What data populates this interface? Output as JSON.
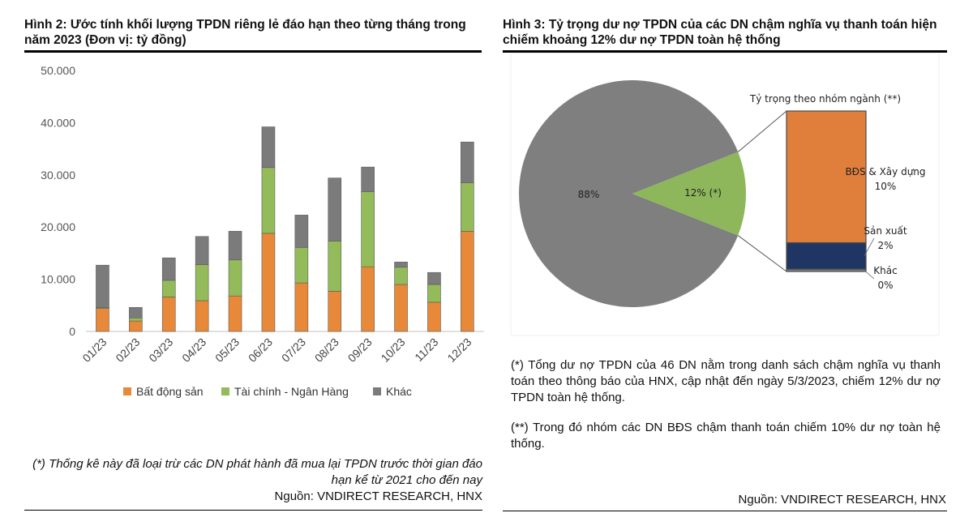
{
  "left": {
    "title": "Hình 2: Ước tính khối lượng TPDN riêng lẻ đáo hạn theo từng tháng trong năm 2023 (Đơn vị: tỷ đồng)",
    "note": "(*) Thống kê này đã loại trừ các DN phát hành đã mua lại TPDN trước thời gian đáo hạn kể từ 2021 cho đến nay",
    "source": "Nguồn: VNDIRECT RESEARCH, HNX"
  },
  "right": {
    "title": "Hình 3: Tỷ trọng dư nợ TPDN của các DN chậm nghĩa vụ thanh toán hiện chiếm khoảng 12% dư nợ TPDN toàn hệ thống",
    "note1": "(*) Tổng dư nợ TPDN của 46 DN nằm trong danh sách chậm nghĩa vụ thanh toán theo thông báo của HNX, cập nhật đến ngày 5/3/2023, chiếm 12% dư nợ TPDN toàn hệ thống.",
    "note2": "(**) Trong đó nhóm các DN BĐS chậm thanh toán chiếm 10% dư nợ toàn hệ thống.",
    "source": "Nguồn: VNDIRECT RESEARCH, HNX"
  },
  "chart_data": [
    {
      "type": "bar",
      "stacked": true,
      "categories": [
        "01/23",
        "02/23",
        "03/23",
        "04/23",
        "05/23",
        "06/23",
        "07/23",
        "08/23",
        "09/23",
        "10/23",
        "11/23",
        "12/23"
      ],
      "series": [
        {
          "name": "Bất động sản",
          "color": "#E8893A",
          "values": [
            4400,
            2000,
            6600,
            5900,
            6800,
            18800,
            9300,
            7700,
            12400,
            9000,
            5600,
            19200
          ]
        },
        {
          "name": "Tài chính - Ngân Hàng",
          "color": "#93BB5A",
          "values": [
            200,
            600,
            3200,
            6900,
            6900,
            12600,
            6800,
            9600,
            14400,
            3300,
            3400,
            9300
          ]
        },
        {
          "name": "Khác",
          "color": "#7B7B7B",
          "values": [
            8100,
            2000,
            4300,
            5400,
            5500,
            7800,
            6200,
            12100,
            4700,
            1000,
            2300,
            7800
          ]
        }
      ],
      "yticks": [
        "0",
        "10.000",
        "20.000",
        "30.000",
        "40.000",
        "50.000"
      ],
      "ylim": [
        0,
        50000
      ],
      "grid": false,
      "legend": "bottom"
    },
    {
      "type": "pie",
      "slices": [
        {
          "label": "88%",
          "value": 88,
          "color": "#7F7F7F"
        },
        {
          "label": "12% (*)",
          "value": 12,
          "color": "#8DB75A"
        }
      ],
      "breakdown_title": "Tỷ trọng theo nhóm ngành (**)",
      "breakdown": [
        {
          "name": "BĐS & Xây dựng",
          "pct": "10%",
          "value": 10,
          "color": "#E07F3C"
        },
        {
          "name": "Sản xuất",
          "pct": "2%",
          "value": 2,
          "color": "#1F3563"
        },
        {
          "name": "Khác",
          "pct": "0%",
          "value": 0,
          "color": "#7F7F7F"
        }
      ]
    }
  ]
}
